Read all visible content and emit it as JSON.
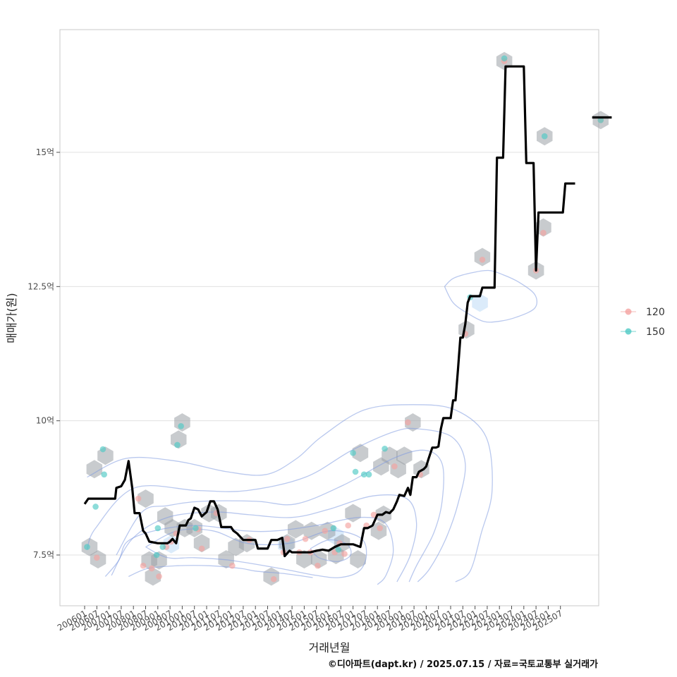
{
  "chart_data": {
    "type": "line",
    "title": "",
    "xlabel": "거래년월",
    "ylabel": "매매가(원)",
    "caption": "©디아파트(dapt.kr) / 2025.07.15 / 자료=국토교통부 실거래가",
    "x_tick_labels": [
      "200601",
      "200607",
      "200701",
      "200707",
      "200801",
      "200807",
      "200901",
      "200907",
      "201001",
      "201007",
      "201101",
      "201107",
      "201201",
      "201207",
      "201301",
      "201307",
      "201401",
      "201407",
      "201501",
      "201507",
      "201601",
      "201607",
      "201701",
      "201707",
      "201801",
      "201807",
      "201901",
      "201907",
      "202001",
      "202007",
      "202101",
      "202107",
      "202201",
      "202207",
      "202301",
      "202307",
      "202401",
      "202407",
      "202501",
      "202507"
    ],
    "y_ticks": [
      7.5,
      10,
      12.5,
      15
    ],
    "y_tick_labels": [
      "7.5억",
      "10억",
      "12.5억",
      "15억"
    ],
    "ylim": [
      6.6,
      17.2
    ],
    "xlim": [
      -2,
      41.5
    ],
    "colors": {
      "s120": "#f4a3a0",
      "s150": "#4fc9c4",
      "hex": "#9aa0a6",
      "contour": "#7f9be0",
      "line": "#000000",
      "grid": "#e0e0e0"
    },
    "legend": [
      {
        "key": "s120",
        "label": "120"
      },
      {
        "key": "s150",
        "label": "150"
      }
    ],
    "trend_line": [
      [
        0,
        8.45
      ],
      [
        0.3,
        8.55
      ],
      [
        1,
        8.55
      ],
      [
        2,
        8.55
      ],
      [
        2.5,
        8.55
      ],
      [
        2.6,
        8.75
      ],
      [
        3,
        8.78
      ],
      [
        3.3,
        8.9
      ],
      [
        3.6,
        9.25
      ],
      [
        3.9,
        8.75
      ],
      [
        4.1,
        8.28
      ],
      [
        4.5,
        8.28
      ],
      [
        4.8,
        7.95
      ],
      [
        5,
        7.9
      ],
      [
        5.3,
        7.75
      ],
      [
        6,
        7.72
      ],
      [
        6.8,
        7.72
      ],
      [
        7,
        7.75
      ],
      [
        7.2,
        7.8
      ],
      [
        7.5,
        7.72
      ],
      [
        7.8,
        8.05
      ],
      [
        8.3,
        8.05
      ],
      [
        8.5,
        8.15
      ],
      [
        8.7,
        8.18
      ],
      [
        9,
        8.38
      ],
      [
        9.3,
        8.35
      ],
      [
        9.6,
        8.22
      ],
      [
        10,
        8.3
      ],
      [
        10.3,
        8.5
      ],
      [
        10.6,
        8.5
      ],
      [
        10.9,
        8.35
      ],
      [
        11.2,
        8.02
      ],
      [
        11.5,
        8.02
      ],
      [
        12,
        8.02
      ],
      [
        12.2,
        7.95
      ],
      [
        12.5,
        7.9
      ],
      [
        13,
        7.78
      ],
      [
        13.5,
        7.78
      ],
      [
        14,
        7.78
      ],
      [
        14.2,
        7.62
      ],
      [
        14.5,
        7.62
      ],
      [
        15,
        7.62
      ],
      [
        15.3,
        7.78
      ],
      [
        15.8,
        7.78
      ],
      [
        16.2,
        7.82
      ],
      [
        16.4,
        7.48
      ],
      [
        16.8,
        7.58
      ],
      [
        17,
        7.55
      ],
      [
        18,
        7.55
      ],
      [
        18.5,
        7.55
      ],
      [
        19,
        7.58
      ],
      [
        19.5,
        7.6
      ],
      [
        20,
        7.58
      ],
      [
        20.5,
        7.65
      ],
      [
        21,
        7.7
      ],
      [
        22,
        7.7
      ],
      [
        22.6,
        7.65
      ],
      [
        22.9,
        8.0
      ],
      [
        23.2,
        8.0
      ],
      [
        23.6,
        8.05
      ],
      [
        24,
        8.25
      ],
      [
        24.4,
        8.25
      ],
      [
        24.7,
        8.3
      ],
      [
        25,
        8.28
      ],
      [
        25.3,
        8.35
      ],
      [
        25.6,
        8.5
      ],
      [
        25.8,
        8.62
      ],
      [
        26.2,
        8.6
      ],
      [
        26.5,
        8.75
      ],
      [
        26.7,
        8.62
      ],
      [
        26.9,
        8.95
      ],
      [
        27.2,
        8.95
      ],
      [
        27.4,
        9.05
      ],
      [
        27.8,
        9.1
      ],
      [
        28,
        9.15
      ],
      [
        28.2,
        9.3
      ],
      [
        28.5,
        9.5
      ],
      [
        28.8,
        9.5
      ],
      [
        29,
        9.52
      ],
      [
        29.2,
        9.85
      ],
      [
        29.4,
        10.05
      ],
      [
        30,
        10.05
      ],
      [
        30.2,
        10.38
      ],
      [
        30.4,
        10.38
      ],
      [
        30.6,
        10.95
      ],
      [
        30.8,
        11.55
      ],
      [
        31,
        11.55
      ],
      [
        31.2,
        11.8
      ],
      [
        31.4,
        12.2
      ],
      [
        31.6,
        12.32
      ],
      [
        32,
        12.32
      ],
      [
        32.4,
        12.32
      ],
      [
        32.6,
        12.48
      ],
      [
        33,
        12.48
      ],
      [
        33.6,
        12.48
      ],
      [
        33.8,
        14.9
      ],
      [
        34.3,
        14.9
      ],
      [
        34.5,
        16.6
      ],
      [
        36,
        16.6
      ],
      [
        36.2,
        14.8
      ],
      [
        36.8,
        14.8
      ],
      [
        37,
        12.8
      ],
      [
        37.2,
        13.88
      ],
      [
        38,
        13.88
      ],
      [
        39.2,
        13.88
      ],
      [
        39.4,
        14.42
      ],
      [
        40.2,
        14.42
      ]
    ],
    "trend_line_2": [
      [
        41.6,
        15.65
      ],
      [
        43.2,
        15.65
      ]
    ],
    "hex_bins": [
      [
        0.4,
        7.65
      ],
      [
        0.8,
        9.1
      ],
      [
        1.1,
        7.42
      ],
      [
        1.7,
        9.35
      ],
      [
        5,
        8.55
      ],
      [
        5.3,
        7.4
      ],
      [
        5.6,
        7.1
      ],
      [
        6.1,
        7.4
      ],
      [
        6.6,
        8.22
      ],
      [
        7.2,
        8.0
      ],
      [
        7.7,
        9.65
      ],
      [
        8,
        9.97
      ],
      [
        8.2,
        8.0
      ],
      [
        9,
        8.0
      ],
      [
        9.6,
        7.72
      ],
      [
        10.2,
        8.28
      ],
      [
        11,
        8.28
      ],
      [
        11.6,
        7.42
      ],
      [
        12.4,
        7.65
      ],
      [
        13.3,
        7.72
      ],
      [
        15.3,
        7.1
      ],
      [
        16.6,
        7.72
      ],
      [
        17.3,
        7.98
      ],
      [
        18,
        7.42
      ],
      [
        18.6,
        7.95
      ],
      [
        19.2,
        7.42
      ],
      [
        19.9,
        7.95
      ],
      [
        20.6,
        7.5
      ],
      [
        21.1,
        7.72
      ],
      [
        22,
        8.28
      ],
      [
        22.4,
        7.42
      ],
      [
        22.6,
        9.4
      ],
      [
        24.1,
        7.95
      ],
      [
        24.5,
        8.25
      ],
      [
        24.3,
        9.15
      ],
      [
        25,
        9.35
      ],
      [
        25.7,
        9.1
      ],
      [
        26.2,
        9.35
      ],
      [
        26.9,
        9.97
      ],
      [
        27.6,
        9.1
      ],
      [
        31.3,
        11.7
      ],
      [
        32.6,
        13.05
      ],
      [
        34.4,
        16.7
      ],
      [
        37,
        12.8
      ],
      [
        37.6,
        13.6
      ],
      [
        37.7,
        15.3
      ],
      [
        42.3,
        15.6
      ]
    ],
    "hex_light": [
      [
        7.1,
        7.7
      ],
      [
        16.5,
        7.7
      ],
      [
        20.6,
        7.85
      ],
      [
        32.4,
        12.2
      ]
    ],
    "series": [
      {
        "name": "120",
        "key": "s120",
        "points": [
          [
            1.0,
            7.45
          ],
          [
            4.4,
            8.55
          ],
          [
            4.8,
            7.3
          ],
          [
            5.5,
            7.25
          ],
          [
            6.1,
            7.1
          ],
          [
            6.7,
            7.65
          ],
          [
            7.1,
            7.75
          ],
          [
            7.5,
            7.9
          ],
          [
            9.3,
            7.98
          ],
          [
            9.6,
            7.62
          ],
          [
            10.8,
            8.28
          ],
          [
            12.1,
            7.3
          ],
          [
            13.5,
            7.78
          ],
          [
            15.5,
            7.05
          ],
          [
            16.3,
            7.55
          ],
          [
            16.6,
            7.8
          ],
          [
            17.6,
            7.55
          ],
          [
            18.1,
            7.8
          ],
          [
            18.5,
            7.55
          ],
          [
            19.1,
            7.3
          ],
          [
            19.7,
            7.95
          ],
          [
            20.5,
            7.55
          ],
          [
            20.9,
            7.72
          ],
          [
            21.3,
            7.52
          ],
          [
            21.6,
            8.05
          ],
          [
            23.1,
            8.05
          ],
          [
            23.7,
            8.25
          ],
          [
            24.2,
            8.0
          ],
          [
            25.4,
            9.15
          ],
          [
            26.5,
            9.97
          ],
          [
            27.5,
            9.0
          ],
          [
            31.2,
            11.62
          ],
          [
            32.6,
            13.0
          ],
          [
            34.4,
            16.7
          ],
          [
            37,
            12.8
          ],
          [
            37.6,
            13.5
          ],
          [
            42.3,
            15.6
          ]
        ]
      },
      {
        "name": "150",
        "key": "s150",
        "points": [
          [
            0.2,
            7.65
          ],
          [
            0.9,
            8.4
          ],
          [
            1.5,
            9.47
          ],
          [
            1.6,
            9.0
          ],
          [
            5.9,
            7.5
          ],
          [
            6.0,
            8.0
          ],
          [
            6.4,
            7.65
          ],
          [
            7.6,
            9.55
          ],
          [
            7.9,
            9.9
          ],
          [
            9.1,
            8.0
          ],
          [
            20.4,
            8.0
          ],
          [
            20.8,
            7.6
          ],
          [
            22.0,
            9.4
          ],
          [
            22.2,
            9.05
          ],
          [
            22.9,
            9.0
          ],
          [
            23.3,
            9.0
          ],
          [
            24.6,
            9.48
          ],
          [
            31.6,
            12.3
          ],
          [
            34.4,
            16.75
          ],
          [
            37.7,
            15.3
          ],
          [
            42.3,
            15.6
          ]
        ]
      }
    ],
    "contours": [
      [
        [
          0.2,
          8.95
        ],
        [
          3.4,
          9.3
        ],
        [
          7.5,
          9.25
        ],
        [
          11.7,
          9.05
        ],
        [
          14.9,
          9.0
        ],
        [
          17.4,
          9.3
        ],
        [
          19.4,
          9.7
        ],
        [
          22.9,
          10.2
        ],
        [
          26.9,
          10.3
        ],
        [
          30.4,
          10.2
        ],
        [
          32.9,
          9.7
        ],
        [
          33.4,
          8.7
        ],
        [
          32.5,
          7.9
        ],
        [
          31.6,
          7.2
        ],
        [
          30.4,
          7.0
        ]
      ],
      [
        [
          0.2,
          7.6
        ],
        [
          0.9,
          8.0
        ],
        [
          4.1,
          8.75
        ],
        [
          9.3,
          8.7
        ],
        [
          13.3,
          8.7
        ],
        [
          18.1,
          8.95
        ],
        [
          21.9,
          9.45
        ],
        [
          25.4,
          9.8
        ],
        [
          27.3,
          9.85
        ],
        [
          30.1,
          9.7
        ],
        [
          31.2,
          9.2
        ],
        [
          30.6,
          8.45
        ],
        [
          29.6,
          7.8
        ],
        [
          28.3,
          7.25
        ],
        [
          27.3,
          7.0
        ]
      ],
      [
        [
          2.6,
          7.5
        ],
        [
          4.7,
          8.3
        ],
        [
          6.8,
          8.42
        ],
        [
          9.6,
          8.5
        ],
        [
          14.1,
          8.5
        ],
        [
          17.3,
          8.45
        ],
        [
          21.2,
          8.8
        ],
        [
          25.3,
          9.3
        ],
        [
          27.9,
          9.45
        ],
        [
          29.3,
          9.2
        ],
        [
          29.3,
          8.5
        ],
        [
          28.6,
          7.9
        ],
        [
          27.2,
          7.3
        ],
        [
          26.6,
          7.0
        ]
      ],
      [
        [
          2.2,
          7.12
        ],
        [
          3.9,
          7.8
        ],
        [
          6.8,
          8.2
        ],
        [
          10.6,
          8.3
        ],
        [
          13.5,
          8.25
        ],
        [
          17.0,
          8.2
        ],
        [
          20.0,
          8.35
        ],
        [
          23.6,
          8.6
        ],
        [
          26.4,
          8.55
        ],
        [
          27.2,
          8.1
        ],
        [
          26.7,
          7.5
        ],
        [
          25.6,
          7.0
        ]
      ],
      [
        [
          1.7,
          7.1
        ],
        [
          2.8,
          7.4
        ],
        [
          3.5,
          7.75
        ],
        [
          5.7,
          7.95
        ],
        [
          9.1,
          8.05
        ],
        [
          13.1,
          7.95
        ],
        [
          15.7,
          7.95
        ],
        [
          19.0,
          8.05
        ],
        [
          22.5,
          8.2
        ],
        [
          24.6,
          8.1
        ],
        [
          25.3,
          7.6
        ],
        [
          24.7,
          7.12
        ],
        [
          24.0,
          6.95
        ]
      ],
      [
        [
          3.6,
          7.1
        ],
        [
          5.2,
          7.25
        ],
        [
          7.6,
          7.3
        ],
        [
          10.2,
          7.3
        ],
        [
          12.8,
          7.25
        ],
        [
          14.0,
          7.2
        ],
        [
          16.5,
          7.15
        ],
        [
          18.7,
          7.08
        ]
      ],
      [
        [
          5.0,
          7.65
        ],
        [
          7.6,
          7.95
        ],
        [
          10.5,
          7.95
        ],
        [
          13.3,
          7.72
        ],
        [
          16.8,
          7.72
        ],
        [
          20.1,
          7.95
        ],
        [
          22.6,
          7.82
        ],
        [
          23.1,
          7.5
        ],
        [
          22.5,
          7.2
        ],
        [
          20.9,
          7.08
        ],
        [
          19.0,
          7.12
        ],
        [
          16.0,
          7.25
        ],
        [
          12.0,
          7.4
        ],
        [
          9.0,
          7.45
        ],
        [
          6.8,
          7.45
        ],
        [
          5.0,
          7.65
        ]
      ],
      [
        [
          18.5,
          7.62
        ],
        [
          20.0,
          7.78
        ],
        [
          21.5,
          7.7
        ],
        [
          21.8,
          7.5
        ],
        [
          20.8,
          7.38
        ],
        [
          19.2,
          7.45
        ],
        [
          18.5,
          7.62
        ]
      ],
      [
        [
          29.5,
          12.5
        ],
        [
          30.2,
          12.65
        ],
        [
          31.6,
          12.75
        ],
        [
          33.1,
          12.8
        ],
        [
          34.3,
          12.72
        ],
        [
          35.6,
          12.58
        ],
        [
          36.9,
          12.35
        ],
        [
          36.9,
          12.1
        ],
        [
          35.4,
          11.93
        ],
        [
          33.9,
          11.85
        ],
        [
          32.7,
          11.85
        ],
        [
          31.4,
          12.0
        ],
        [
          30.2,
          12.2
        ],
        [
          29.5,
          12.5
        ]
      ]
    ]
  }
}
